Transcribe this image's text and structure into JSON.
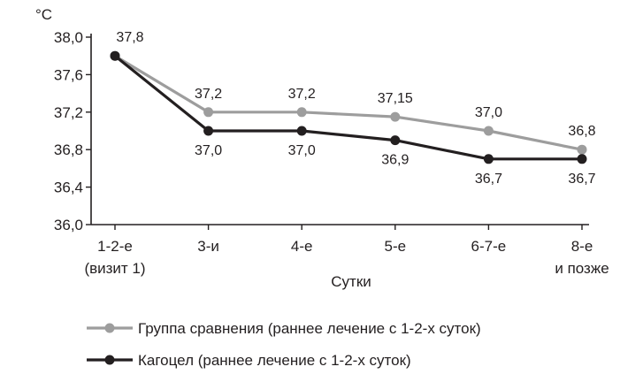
{
  "chart_data": {
    "type": "line",
    "unit": "°C",
    "xlabel": "Сутки",
    "categories": [
      [
        "1-2-е",
        "(визит 1)"
      ],
      [
        "3-и"
      ],
      [
        "4-е"
      ],
      [
        "5-е"
      ],
      [
        "6-7-е"
      ],
      [
        "8-е",
        "и позже"
      ]
    ],
    "ylim": [
      36.0,
      38.0
    ],
    "yticks": [
      36.0,
      36.4,
      36.8,
      37.2,
      37.6,
      38.0
    ],
    "ytick_labels": [
      "36,0",
      "36,4",
      "36,8",
      "37,2",
      "37,6",
      "38,0"
    ],
    "grid": false,
    "legend_position": "bottom",
    "series": [
      {
        "name": "Группа сравнения (раннее лечение с 1-2-х суток)",
        "color": "#9d9d9d",
        "values": [
          37.8,
          37.2,
          37.2,
          37.15,
          37.0,
          36.8
        ],
        "labels": [
          "37,8",
          "37,2",
          "37,2",
          "37,15",
          "37,0",
          "36,8"
        ],
        "label_position": "above"
      },
      {
        "name": "Кагоцел (раннее лечение с 1-2-х суток)",
        "color": "#231f20",
        "values": [
          37.8,
          37.0,
          37.0,
          36.9,
          36.7,
          36.7
        ],
        "labels": [
          "",
          "37,0",
          "37,0",
          "36,9",
          "36,7",
          "36,7"
        ],
        "label_position": "below"
      }
    ]
  }
}
